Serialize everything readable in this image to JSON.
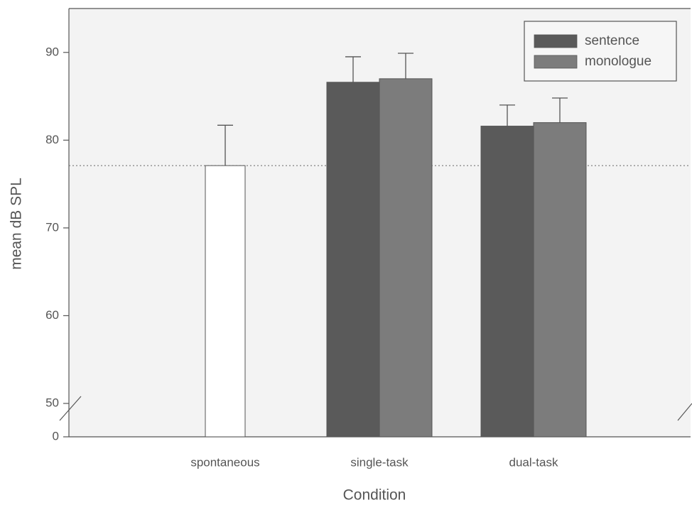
{
  "chart_data": {
    "type": "bar",
    "x_label": "Condition",
    "y_label": "mean dB SPL",
    "categories": [
      "spontaneous",
      "single-task",
      "dual-task"
    ],
    "single_bars": {
      "color": "#ffffff",
      "values": [
        77.1,
        null,
        null
      ],
      "errors": [
        4.6,
        null,
        null
      ]
    },
    "series": [
      {
        "name": "sentence",
        "color": "#5a5a5a",
        "values": [
          null,
          86.6,
          81.6
        ],
        "errors": [
          null,
          2.9,
          2.4
        ]
      },
      {
        "name": "monologue",
        "color": "#7c7c7c",
        "values": [
          null,
          87.0,
          82.0
        ],
        "errors": [
          null,
          2.9,
          2.8
        ]
      }
    ],
    "ylim": [
      0,
      95
    ],
    "axis_break": [
      0,
      50
    ],
    "yticks": [
      0,
      50,
      60,
      70,
      80,
      90
    ],
    "reference_line": 77.1,
    "legend": "upper right"
  }
}
